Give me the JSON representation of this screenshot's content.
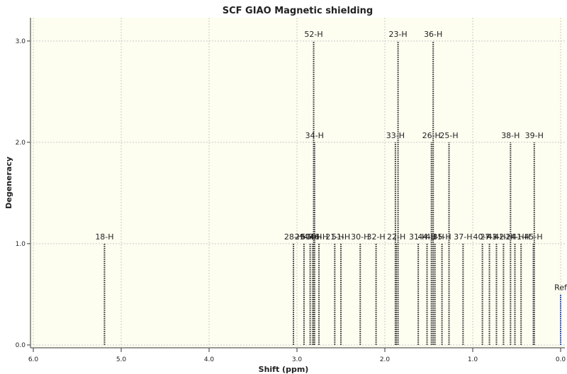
{
  "chart_data": {
    "type": "stick",
    "title": "SCF GIAO Magnetic shielding",
    "x_label": "Shift (ppm)",
    "y_label": "Degeneracy",
    "xlim": [
      6,
      0
    ],
    "ylim": [
      0,
      3.23
    ],
    "xticks": [
      {
        "value": 6,
        "label": "6.0"
      },
      {
        "value": 5,
        "label": "5.0"
      },
      {
        "value": 4,
        "label": "4.0"
      },
      {
        "value": 3,
        "label": "3.0"
      },
      {
        "value": 2,
        "label": "2.0"
      },
      {
        "value": 1,
        "label": "1.0"
      },
      {
        "value": 0,
        "label": "0.0"
      }
    ],
    "yticks": [
      {
        "value": 0,
        "label": "0.0"
      },
      {
        "value": 1,
        "label": "1.0"
      },
      {
        "value": 2,
        "label": "2.0"
      },
      {
        "value": 3,
        "label": "3.0"
      }
    ],
    "grid": true,
    "series": [
      {
        "color": "#555555",
        "x": [
          5.19,
          2.81,
          1.85,
          1.45,
          2.8,
          1.88,
          1.47,
          1.27,
          0.57,
          0.3,
          3.04,
          2.92,
          2.85,
          2.82,
          2.75,
          2.57,
          2.5,
          2.28,
          2.1,
          1.87,
          1.62,
          1.52,
          1.43,
          1.35,
          1.11,
          0.89,
          0.81,
          0.73,
          0.65,
          0.52,
          0.45,
          0.31
        ],
        "values": [
          1,
          3,
          3,
          3,
          2,
          2,
          2,
          2,
          2,
          2,
          1,
          1,
          1,
          1,
          1,
          1,
          1,
          1,
          1,
          1,
          1,
          1,
          1,
          1,
          1,
          1,
          1,
          1,
          1,
          1,
          1,
          1
        ],
        "labels": [
          "18-H",
          "52-H",
          "23-H",
          "36-H",
          "34-H",
          "33-H",
          "26-H",
          "25-H",
          "38-H",
          "39-H",
          "28-H",
          "29-H",
          "50-H",
          "47-H",
          "46-H",
          "21-H",
          "51-H",
          "30-H",
          "32-H",
          "22-H",
          "31-H",
          "44-H",
          "48-H",
          "35-H",
          "37-H",
          "40-H",
          "27-H",
          "43-H",
          "42-H",
          "24-H",
          "41-H",
          "45-H"
        ]
      },
      {
        "color": "#3355dd",
        "x": [
          0
        ],
        "values": [
          0.5
        ],
        "labels": [
          "Ref"
        ]
      }
    ]
  }
}
